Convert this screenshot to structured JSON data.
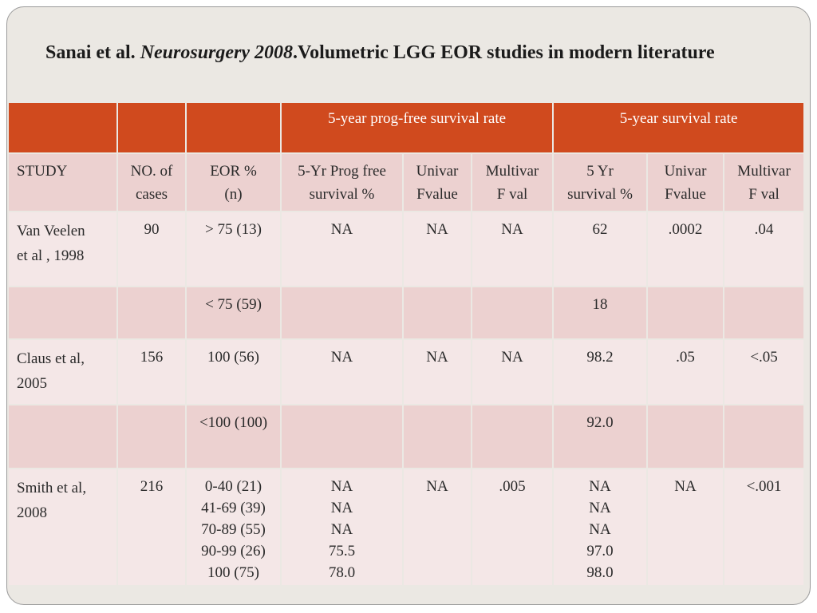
{
  "title": {
    "prefix": "Sanai et al. ",
    "journal": "Neurosurgery 2008",
    "suffix": ".Volumetric LGG EOR studies in modern literature"
  },
  "table": {
    "group_headers": [
      "",
      "",
      "",
      "5-year prog-free survival rate",
      "5-year survival rate"
    ],
    "column_headers": [
      [
        "STUDY"
      ],
      [
        "NO. of",
        "cases"
      ],
      [
        "EOR %",
        "(n)"
      ],
      [
        "5-Yr Prog free",
        "survival %"
      ],
      [
        "Univar",
        "Fvalue"
      ],
      [
        "Multivar",
        "F val"
      ],
      [
        "5 Yr",
        "survival %"
      ],
      [
        "Univar",
        "Fvalue"
      ],
      [
        "Multivar",
        "F val"
      ]
    ],
    "rows": [
      [
        [
          "Van Veelen",
          "et al , 1998"
        ],
        [
          "90"
        ],
        [
          "> 75 (13)"
        ],
        [
          "NA"
        ],
        [
          "NA"
        ],
        [
          "NA"
        ],
        [
          "62"
        ],
        [
          ".0002"
        ],
        [
          ".04"
        ]
      ],
      [
        [],
        [],
        [
          "< 75 (59)"
        ],
        [],
        [],
        [],
        [
          "18"
        ],
        [],
        []
      ],
      [
        [
          "Claus et al,",
          "2005"
        ],
        [
          "156"
        ],
        [
          "100 (56)"
        ],
        [
          "NA"
        ],
        [
          "NA"
        ],
        [
          "NA"
        ],
        [
          "98.2"
        ],
        [
          ".05"
        ],
        [
          "<.05"
        ]
      ],
      [
        [],
        [],
        [
          "<100 (100)"
        ],
        [],
        [],
        [],
        [
          "92.0"
        ],
        [],
        []
      ],
      [
        [
          "Smith et al,",
          "2008"
        ],
        [
          "216"
        ],
        [
          "0-40 (21)",
          "41-69 (39)",
          "70-89 (55)",
          "90-99 (26)",
          "100 (75)"
        ],
        [
          "NA",
          "NA",
          "NA",
          "75.5",
          "78.0"
        ],
        [
          "NA"
        ],
        [
          ".005"
        ],
        [
          "NA",
          "NA",
          "NA",
          "97.0",
          "98.0"
        ],
        [
          "NA"
        ],
        [
          "<.001"
        ]
      ]
    ]
  }
}
